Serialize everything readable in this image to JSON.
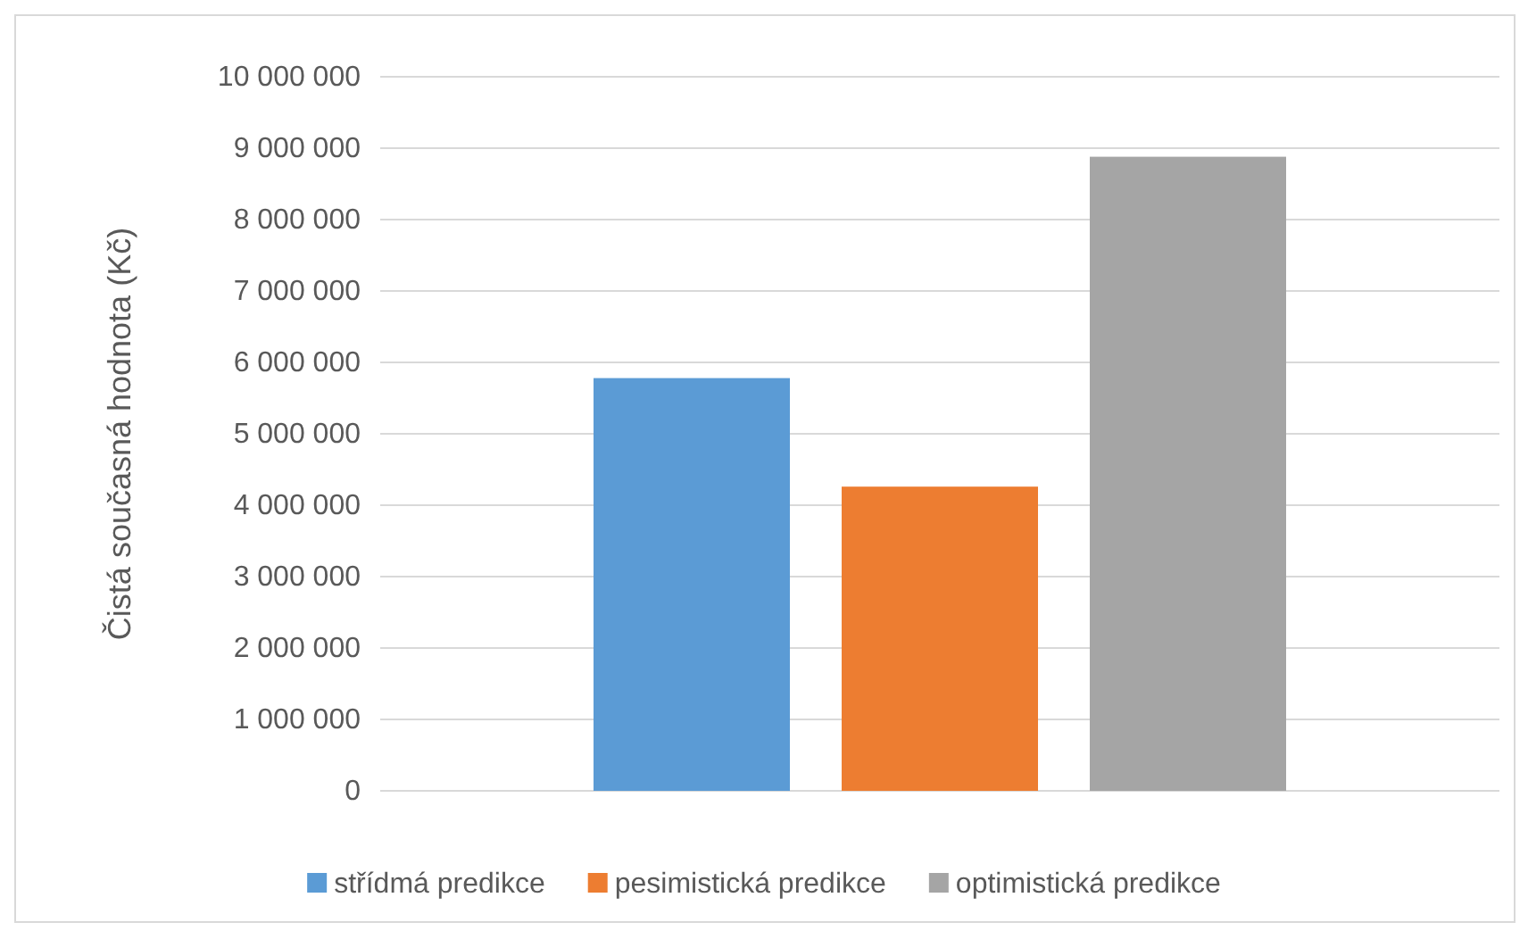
{
  "chart_data": {
    "type": "bar",
    "ylabel": "Čistá současná hodnota (Kč)",
    "categories": [
      null
    ],
    "series": [
      {
        "name": "střídmá predikce",
        "color": "#5b9bd5",
        "values": [
          5780000
        ]
      },
      {
        "name": "pesimistická predikce",
        "color": "#ed7d31",
        "values": [
          4260000
        ]
      },
      {
        "name": "optimistická predikce",
        "color": "#a5a5a5",
        "values": [
          8880000
        ]
      }
    ],
    "ylim": [
      0,
      10000000
    ],
    "yticks": [
      {
        "value": 0,
        "label": "0"
      },
      {
        "value": 1000000,
        "label": "1 000 000"
      },
      {
        "value": 2000000,
        "label": "2 000 000"
      },
      {
        "value": 3000000,
        "label": "3 000 000"
      },
      {
        "value": 4000000,
        "label": "4 000 000"
      },
      {
        "value": 5000000,
        "label": "5 000 000"
      },
      {
        "value": 6000000,
        "label": "6 000 000"
      },
      {
        "value": 7000000,
        "label": "7 000 000"
      },
      {
        "value": 8000000,
        "label": "8 000 000"
      },
      {
        "value": 9000000,
        "label": "9 000 000"
      },
      {
        "value": 10000000,
        "label": "10 000 000"
      }
    ],
    "grid": "y",
    "legend": "bottom"
  }
}
